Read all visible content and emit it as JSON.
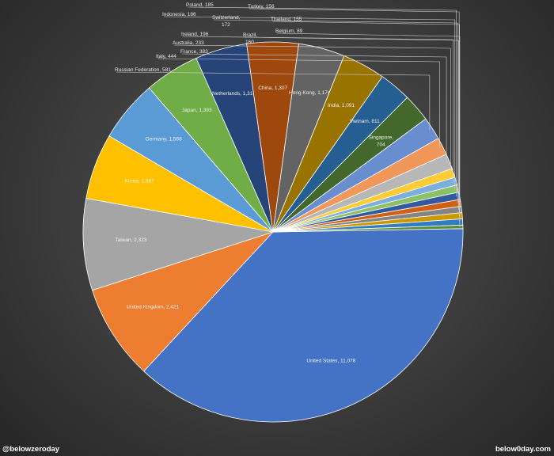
{
  "chart_data": {
    "type": "pie",
    "title": "",
    "slices": [
      {
        "label": "United States, 11,078",
        "value": 11078,
        "color": "#4472C4"
      },
      {
        "label": "United Kingdom, 2,421",
        "value": 2421,
        "color": "#ED7D31"
      },
      {
        "label": "Taiwan, 2,323",
        "value": 2323,
        "color": "#A5A5A5"
      },
      {
        "label": "Korea, 1,667",
        "value": 1667,
        "color": "#FFC000"
      },
      {
        "label": "Germany, 1,568",
        "value": 1568,
        "color": "#5B9BD5"
      },
      {
        "label": "Japan, 1,393",
        "value": 1393,
        "color": "#70AD47"
      },
      {
        "label": "Netherlands, 1,314",
        "value": 1314,
        "color": "#264478"
      },
      {
        "label": "China, 1,307",
        "value": 1307,
        "color": "#9E480E"
      },
      {
        "label": "Hong Kong, 1,174",
        "value": 1174,
        "color": "#636363"
      },
      {
        "label": "India, 1,091",
        "value": 1091,
        "color": "#997300"
      },
      {
        "label": "Vietnam, 811",
        "value": 811,
        "color": "#255E91"
      },
      {
        "label": "Singapore, 704",
        "value": 704,
        "color": "#43682B"
      },
      {
        "label": "Russian Federation, 581",
        "value": 581,
        "color": "#698ED0"
      },
      {
        "label": "Italy, 444",
        "value": 444,
        "color": "#F1975A"
      },
      {
        "label": "France, 383",
        "value": 383,
        "color": "#B7B7B7"
      },
      {
        "label": "Australia, 233",
        "value": 233,
        "color": "#FFCD33"
      },
      {
        "label": "Ireland, 196",
        "value": 196,
        "color": "#7CAFDD"
      },
      {
        "label": "Indonesia, 186",
        "value": 186,
        "color": "#8CC168"
      },
      {
        "label": "Poland, 185",
        "value": 185,
        "color": "#335AA1"
      },
      {
        "label": "Switzerland, 172",
        "value": 172,
        "color": "#D26012"
      },
      {
        "label": "Brazil, 160",
        "value": 160,
        "color": "#848484"
      },
      {
        "label": "Turkey, 156",
        "value": 156,
        "color": "#CC9A00"
      },
      {
        "label": "Thailand, 155",
        "value": 155,
        "color": "#327DC2"
      },
      {
        "label": "Belgium, 89",
        "value": 89,
        "color": "#5A8B39"
      }
    ],
    "legend": "none"
  },
  "footer": {
    "left": "@belowzeroday",
    "right": "below0day.com"
  }
}
